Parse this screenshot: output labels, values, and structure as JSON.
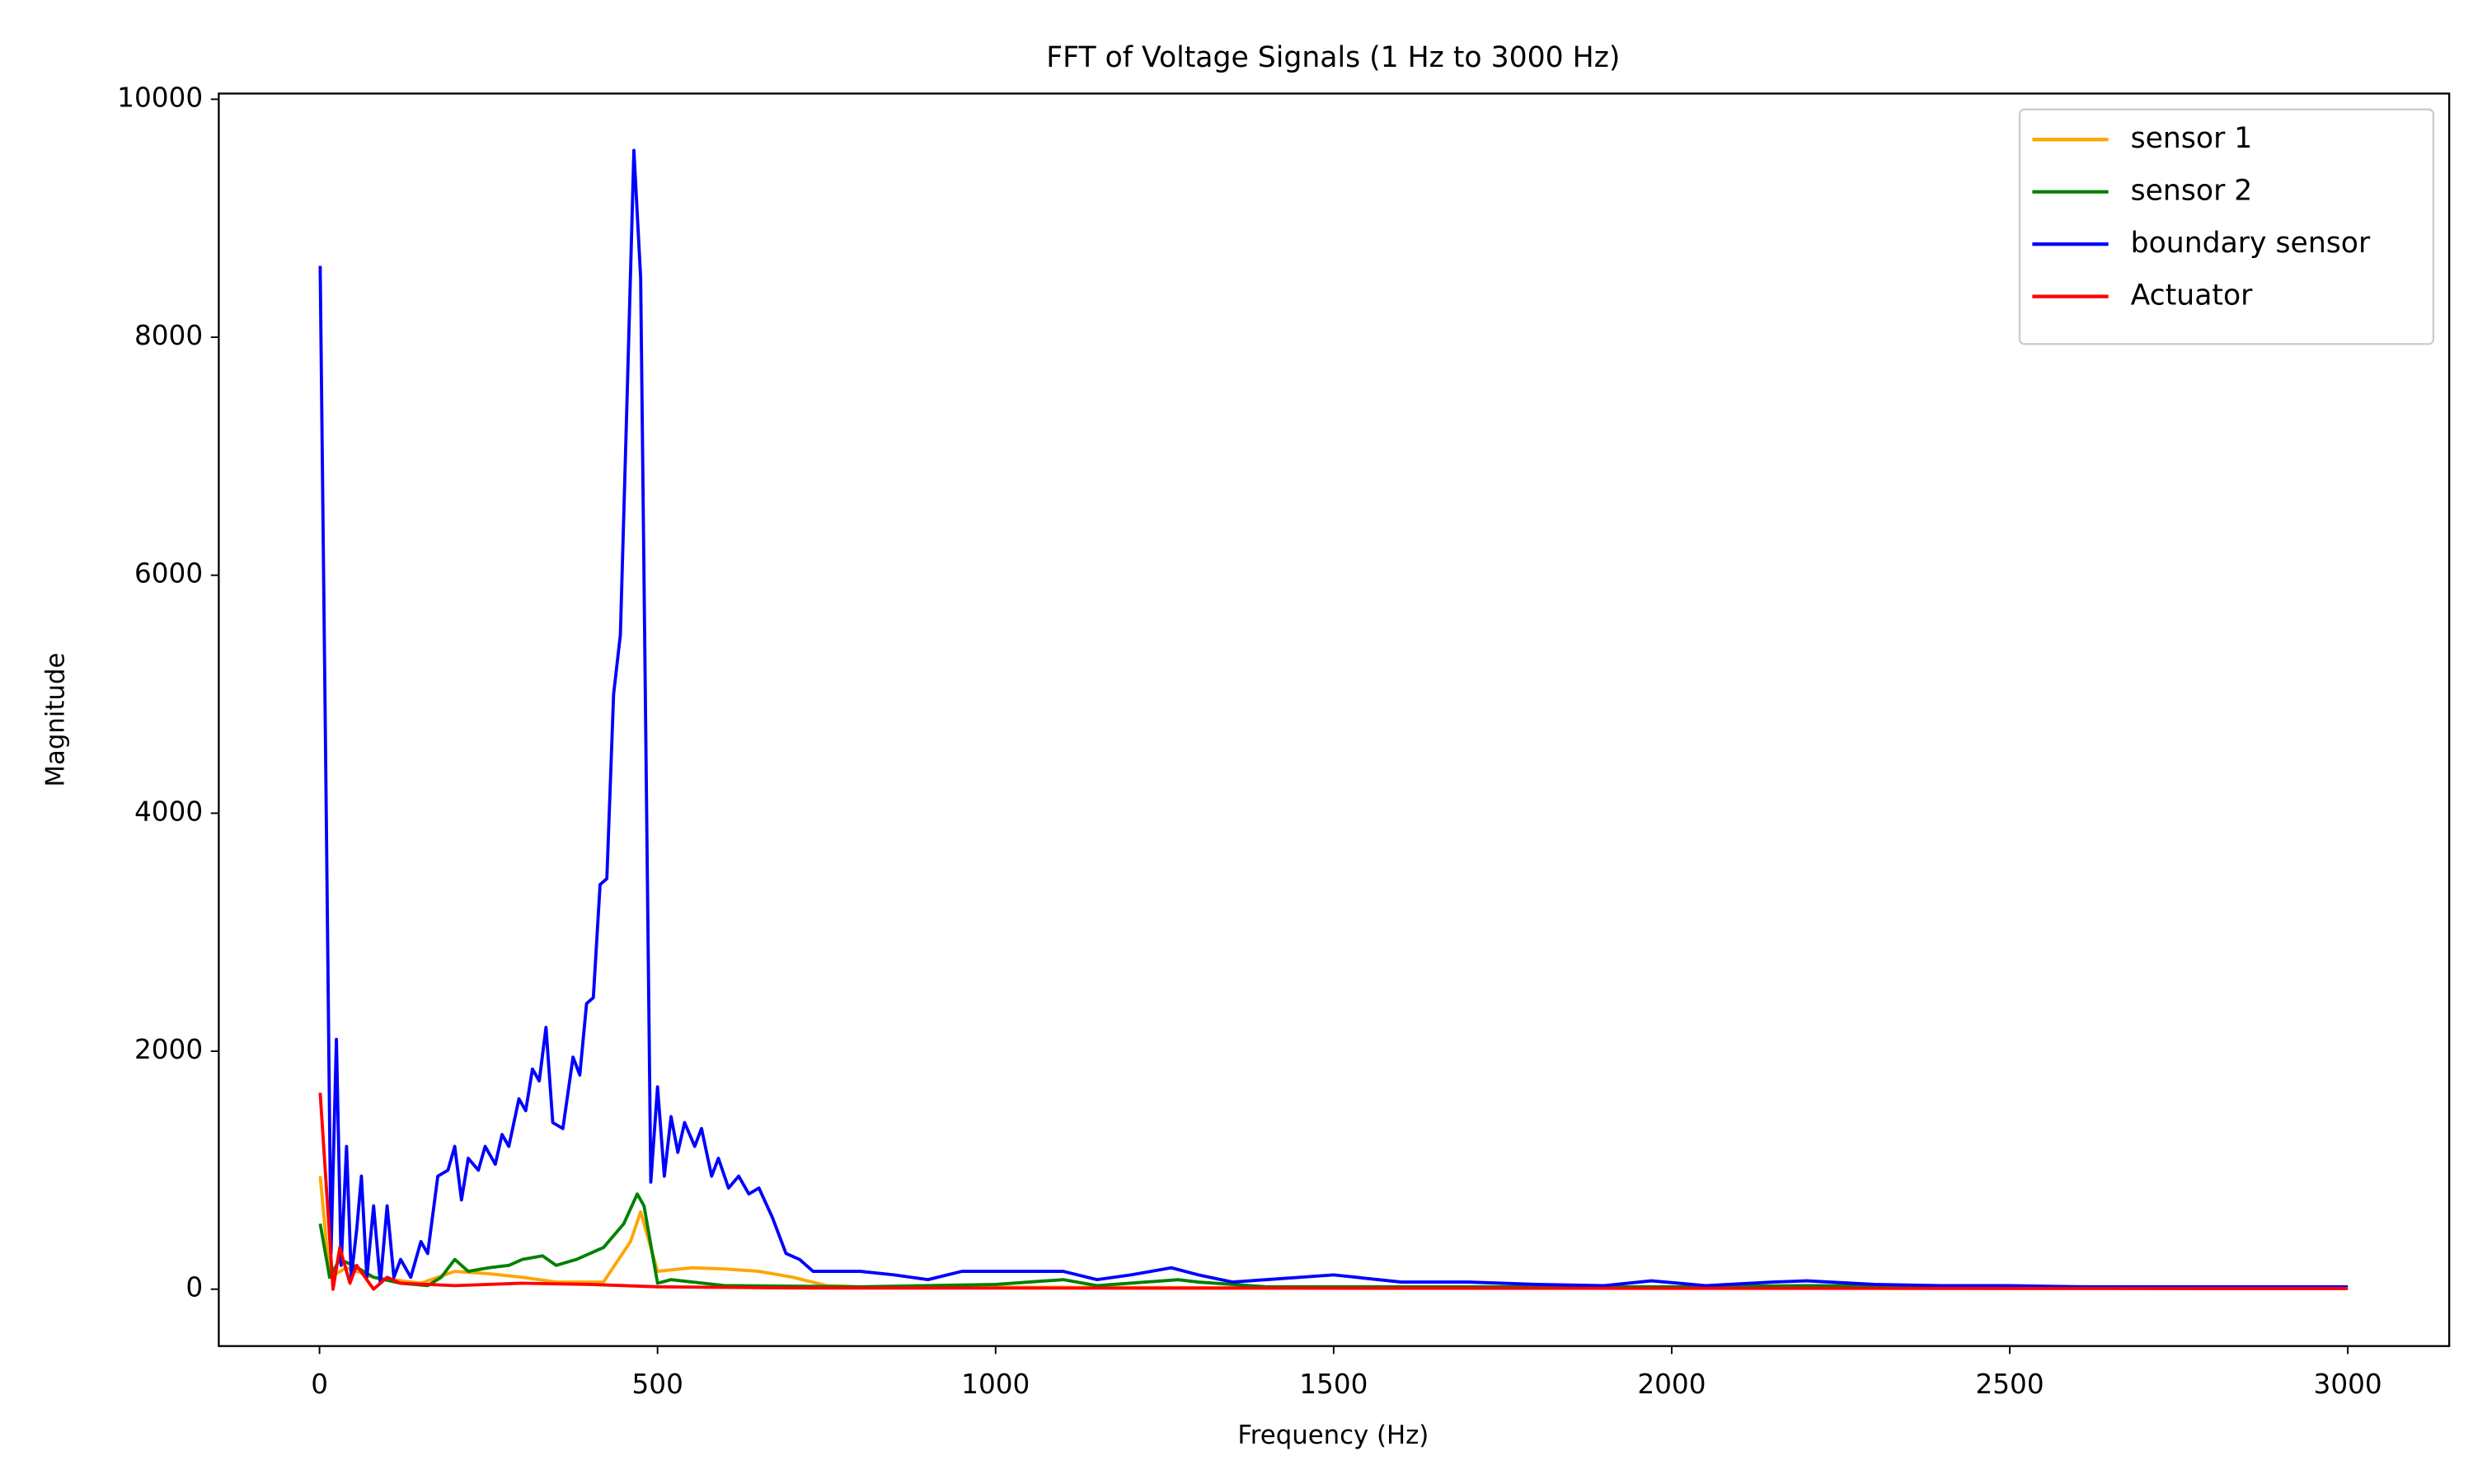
{
  "chart_data": {
    "type": "line",
    "title": "FFT of Voltage Signals (1 Hz to 3000 Hz)",
    "x_label": "Frequency (Hz)",
    "y_label": "Magnitude",
    "xlim": [
      -149,
      3150
    ],
    "xticks": [
      0,
      500,
      1000,
      1500,
      2000,
      2500,
      3000
    ],
    "ylim": [
      -478,
      10048
    ],
    "yticks": [
      0,
      2000,
      4000,
      6000,
      8000,
      10000
    ],
    "legend": "upper right",
    "grid": false,
    "series": [
      {
        "name": "sensor 1",
        "color": "#ffa500",
        "x": [
          1,
          15,
          40,
          80,
          150,
          200,
          250,
          300,
          350,
          420,
          460,
          475,
          500,
          550,
          600,
          650,
          700,
          750,
          800,
          1500,
          3000
        ],
        "values": [
          950,
          100,
          180,
          100,
          50,
          150,
          130,
          100,
          60,
          60,
          400,
          650,
          150,
          180,
          170,
          150,
          100,
          30,
          20,
          10,
          10
        ]
      },
      {
        "name": "sensor 2",
        "color": "#008000",
        "x": [
          1,
          15,
          30,
          50,
          80,
          120,
          160,
          180,
          200,
          220,
          250,
          280,
          300,
          330,
          350,
          380,
          420,
          450,
          470,
          480,
          500,
          520,
          600,
          800,
          1000,
          1100,
          1150,
          1270,
          1300,
          1400,
          2000,
          2200,
          3000
        ],
        "values": [
          550,
          100,
          250,
          200,
          100,
          50,
          30,
          100,
          250,
          150,
          180,
          200,
          250,
          280,
          200,
          250,
          350,
          550,
          800,
          700,
          50,
          80,
          30,
          20,
          40,
          80,
          30,
          80,
          60,
          20,
          20,
          30,
          10
        ]
      },
      {
        "name": "boundary sensor",
        "color": "#0000ff",
        "x": [
          1,
          10,
          17,
          25,
          32,
          40,
          47,
          55,
          62,
          70,
          80,
          90,
          100,
          110,
          120,
          135,
          150,
          160,
          175,
          190,
          200,
          210,
          220,
          235,
          245,
          260,
          270,
          280,
          295,
          305,
          315,
          325,
          335,
          345,
          360,
          375,
          385,
          395,
          405,
          415,
          425,
          435,
          445,
          455,
          465,
          475,
          490,
          500,
          510,
          520,
          530,
          540,
          555,
          565,
          580,
          590,
          605,
          620,
          635,
          650,
          670,
          690,
          710,
          730,
          760,
          800,
          850,
          900,
          950,
          1000,
          1050,
          1100,
          1150,
          1200,
          1260,
          1300,
          1350,
          1400,
          1500,
          1600,
          1700,
          1800,
          1900,
          1970,
          2050,
          2150,
          2200,
          2300,
          2400,
          2500,
          2600,
          2700,
          2800,
          2900,
          3000
        ],
        "values": [
          8600,
          4000,
          300,
          2100,
          200,
          1200,
          100,
          500,
          950,
          100,
          700,
          50,
          700,
          100,
          250,
          100,
          400,
          300,
          950,
          1000,
          1200,
          750,
          1100,
          1000,
          1200,
          1050,
          1300,
          1200,
          1600,
          1500,
          1850,
          1750,
          2200,
          1400,
          1350,
          1950,
          1800,
          2400,
          2450,
          3400,
          3450,
          5000,
          5500,
          7500,
          9570,
          8500,
          900,
          1700,
          950,
          1450,
          1150,
          1400,
          1200,
          1350,
          950,
          1100,
          850,
          950,
          800,
          850,
          600,
          300,
          250,
          150,
          150,
          150,
          120,
          80,
          150,
          150,
          150,
          150,
          80,
          120,
          180,
          120,
          60,
          80,
          120,
          60,
          60,
          40,
          30,
          70,
          30,
          60,
          70,
          40,
          30,
          30,
          20,
          20,
          20,
          20,
          20
        ]
      },
      {
        "name": "Actuator",
        "color": "#ff0000",
        "x": [
          1,
          20,
          30,
          45,
          55,
          80,
          100,
          120,
          200,
          300,
          400,
          500,
          700,
          3000
        ],
        "values": [
          1650,
          0,
          350,
          50,
          200,
          0,
          100,
          50,
          30,
          50,
          40,
          20,
          10,
          5
        ]
      }
    ]
  }
}
